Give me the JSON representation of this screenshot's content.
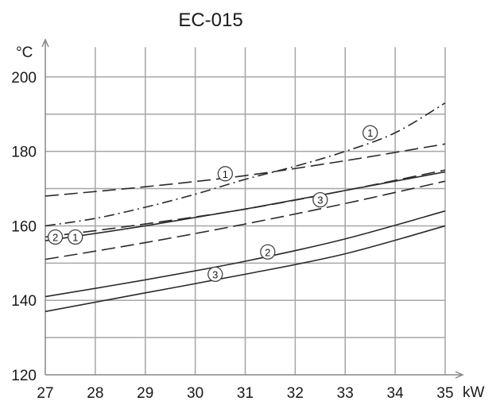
{
  "chart_data": {
    "type": "line",
    "title": "EC-015",
    "xlabel": "kW",
    "ylabel": "°C",
    "xlim": [
      27,
      35
    ],
    "ylim": [
      120,
      210
    ],
    "x_ticks": [
      "27",
      "28",
      "29",
      "30",
      "31",
      "32",
      "33",
      "34",
      "35"
    ],
    "y_ticks": [
      "120",
      "140",
      "160",
      "180",
      "200"
    ],
    "grid": true,
    "series": [
      {
        "label": "1",
        "style": "dash-dot",
        "color": "#2a2a2a",
        "x": [
          27,
          28,
          29,
          30,
          31,
          32,
          33,
          34,
          35
        ],
        "y": [
          160,
          162,
          165,
          168.5,
          172.5,
          176,
          180,
          185,
          193
        ]
      },
      {
        "label": "1",
        "style": "dashed",
        "color": "#2a2a2a",
        "x": [
          27,
          29,
          31,
          33,
          35
        ],
        "y": [
          168,
          170.5,
          173.5,
          177.5,
          182
        ]
      },
      {
        "label": "1",
        "style": "dashed",
        "color": "#2a2a2a",
        "x": [
          27,
          29,
          31,
          33,
          35
        ],
        "y": [
          157,
          160.5,
          164.5,
          169.5,
          175
        ]
      },
      {
        "label": "2",
        "style": "solid",
        "color": "#2a2a2a",
        "x": [
          27,
          29,
          31,
          33,
          35
        ],
        "y": [
          156,
          160,
          164.5,
          169.5,
          174.5
        ]
      },
      {
        "label": "3",
        "style": "dashed",
        "color": "#2a2a2a",
        "x": [
          27,
          29,
          31,
          33,
          35
        ],
        "y": [
          151,
          155.5,
          160.5,
          166,
          172
        ]
      },
      {
        "label": "2",
        "style": "solid",
        "color": "#2a2a2a",
        "x": [
          27,
          29,
          31,
          33,
          35
        ],
        "y": [
          141,
          145.5,
          150.5,
          156.5,
          164
        ]
      },
      {
        "label": "3",
        "style": "solid",
        "color": "#2a2a2a",
        "x": [
          27,
          29,
          31,
          33,
          35
        ],
        "y": [
          137,
          142,
          147,
          152.5,
          160
        ]
      }
    ],
    "annotations": [
      {
        "text": "1",
        "x": 33.5,
        "y": 185
      },
      {
        "text": "1",
        "x": 30.6,
        "y": 174
      },
      {
        "text": "3",
        "x": 32.5,
        "y": 167
      },
      {
        "text": "2",
        "x": 27.2,
        "y": 157
      },
      {
        "text": "1",
        "x": 27.6,
        "y": 157
      },
      {
        "text": "2",
        "x": 31.45,
        "y": 153
      },
      {
        "text": "3",
        "x": 30.4,
        "y": 147
      }
    ]
  }
}
